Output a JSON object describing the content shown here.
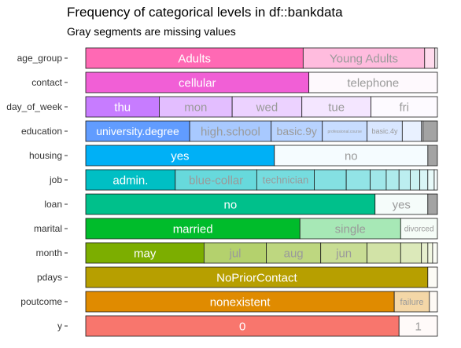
{
  "chart_data": {
    "type": "bar",
    "orientation": "horizontal",
    "stacked": "proportion",
    "title": "Frequency of categorical levels in df::bankdata",
    "subtitle": "Gray segments are missing values",
    "xlim": [
      0,
      1
    ],
    "grid": false,
    "legend": "none",
    "variables": [
      {
        "name": "age_group",
        "color": "#ff69b4",
        "segments": [
          {
            "label": "Adults",
            "value": 0.6182
          },
          {
            "label": "Young Adults",
            "value": 0.3455
          },
          {
            "label": "",
            "value": 0.0291
          },
          {
            "label": "",
            "value": 0.0072
          }
        ]
      },
      {
        "name": "contact",
        "color": "#f15fd6",
        "segments": [
          {
            "label": "cellular",
            "value": 0.6345
          },
          {
            "label": "telephone",
            "value": 0.3655
          }
        ]
      },
      {
        "name": "day_of_week",
        "color": "#c77cff",
        "segments": [
          {
            "label": "thu",
            "value": 0.2091
          },
          {
            "label": "mon",
            "value": 0.2073
          },
          {
            "label": "wed",
            "value": 0.1982
          },
          {
            "label": "tue",
            "value": 0.1964
          },
          {
            "label": "fri",
            "value": 0.189
          }
        ]
      },
      {
        "name": "education",
        "color": "#619cff",
        "segments": [
          {
            "label": "university.degree",
            "value": 0.2955
          },
          {
            "label": "high.school",
            "value": 0.2318
          },
          {
            "label": "basic.9y",
            "value": 0.1455
          },
          {
            "label": "professional.course",
            "value": 0.1273
          },
          {
            "label": "basic.4y",
            "value": 0.1
          },
          {
            "label": "",
            "value": 0.0545
          },
          {
            "label": "",
            "value": 0.0045
          },
          {
            "label": "",
            "value": 0.0409,
            "missing": true
          }
        ]
      },
      {
        "name": "housing",
        "color": "#00b0f6",
        "segments": [
          {
            "label": "yes",
            "value": 0.5364
          },
          {
            "label": "no",
            "value": 0.4364
          },
          {
            "label": "",
            "value": 0.0272,
            "missing": true
          }
        ]
      },
      {
        "name": "job",
        "color": "#00bfc4",
        "segments": [
          {
            "label": "admin.",
            "value": 0.2545
          },
          {
            "label": "blue-collar",
            "value": 0.2318
          },
          {
            "label": "technician",
            "value": 0.1636
          },
          {
            "label": "",
            "value": 0.0909
          },
          {
            "label": "",
            "value": 0.0682
          },
          {
            "label": "",
            "value": 0.0455
          },
          {
            "label": "",
            "value": 0.0364
          },
          {
            "label": "",
            "value": 0.0318
          },
          {
            "label": "",
            "value": 0.0273
          },
          {
            "label": "",
            "value": 0.0227
          },
          {
            "label": "",
            "value": 0.0182
          },
          {
            "label": "",
            "value": 0.0091
          }
        ]
      },
      {
        "name": "loan",
        "color": "#00c08b",
        "segments": [
          {
            "label": "no",
            "value": 0.8227
          },
          {
            "label": "yes",
            "value": 0.15
          },
          {
            "label": "",
            "value": 0.0273,
            "missing": true
          }
        ]
      },
      {
        "name": "marital",
        "color": "#00bc2b",
        "segments": [
          {
            "label": "married",
            "value": 0.6091
          },
          {
            "label": "single",
            "value": 0.2864
          },
          {
            "label": "divorced",
            "value": 0.1045
          }
        ]
      },
      {
        "name": "month",
        "color": "#7cae00",
        "segments": [
          {
            "label": "may",
            "value": 0.3364
          },
          {
            "label": "jul",
            "value": 0.1773
          },
          {
            "label": "aug",
            "value": 0.1545
          },
          {
            "label": "jun",
            "value": 0.1318
          },
          {
            "label": "",
            "value": 0.0955
          },
          {
            "label": "",
            "value": 0.0591
          },
          {
            "label": "",
            "value": 0.0182
          },
          {
            "label": "",
            "value": 0.0136
          },
          {
            "label": "",
            "value": 0.0136
          }
        ]
      },
      {
        "name": "pdays",
        "color": "#b79f00",
        "segments": [
          {
            "label": "NoPriorContact",
            "value": 0.9727
          },
          {
            "label": "",
            "value": 0.0273
          }
        ]
      },
      {
        "name": "poutcome",
        "color": "#e08b00",
        "segments": [
          {
            "label": "nonexistent",
            "value": 0.8773
          },
          {
            "label": "failure",
            "value": 0.1
          },
          {
            "label": "",
            "value": 0.0227
          }
        ]
      },
      {
        "name": "y",
        "color": "#f8766d",
        "segments": [
          {
            "label": "0",
            "value": 0.8909
          },
          {
            "label": "1",
            "value": 0.1091
          }
        ]
      }
    ]
  }
}
